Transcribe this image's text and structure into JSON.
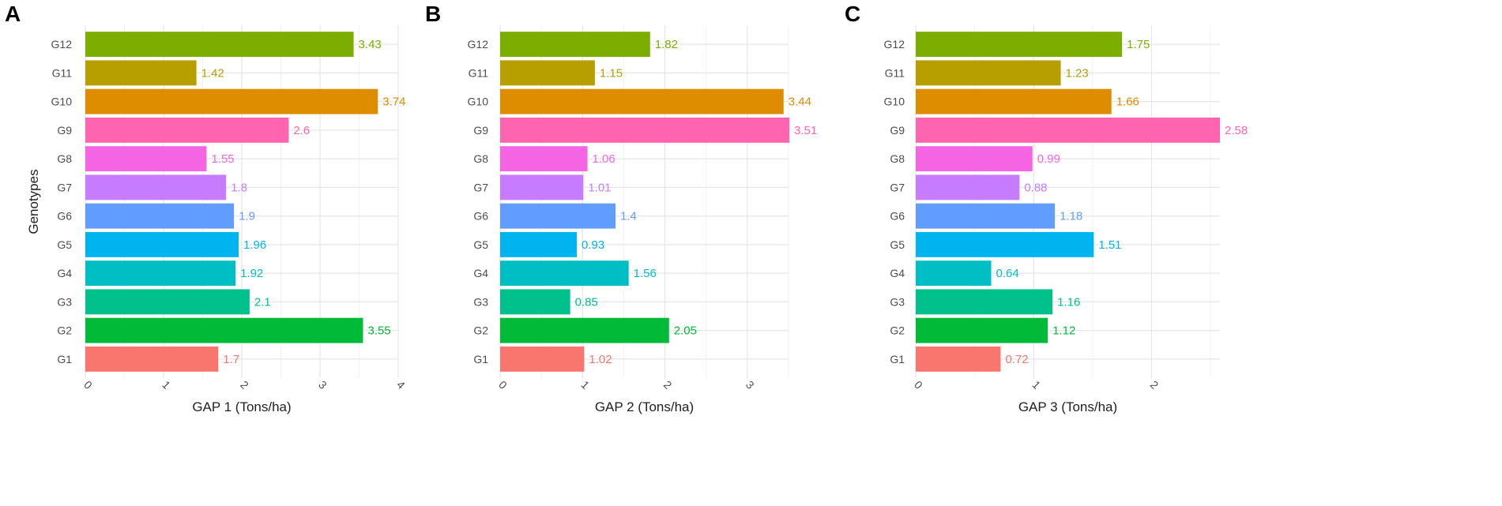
{
  "colors": {
    "G1": "#F8766D",
    "G2": "#00BA38",
    "G3": "#00C08B",
    "G4": "#00BFC4",
    "G5": "#00B4F0",
    "G6": "#619CFF",
    "G7": "#C77CFF",
    "G8": "#F564E3",
    "G9": "#FF64B0",
    "G10": "#DE8C00",
    "G11": "#B79F00",
    "G12": "#7CAE00"
  },
  "chart_data": [
    {
      "type": "bar",
      "orientation": "horizontal",
      "panel_label": "A",
      "categories": [
        "G1",
        "G2",
        "G3",
        "G4",
        "G5",
        "G6",
        "G7",
        "G8",
        "G9",
        "G10",
        "G11",
        "G12"
      ],
      "values": [
        1.7,
        3.55,
        2.1,
        1.92,
        1.96,
        1.9,
        1.8,
        1.55,
        2.6,
        3.74,
        1.42,
        3.43
      ],
      "value_labels": [
        "1.7",
        "3.55",
        "2.1",
        "1.92",
        "1.96",
        "1.9",
        "1.8",
        "1.55",
        "2.6",
        "3.74",
        "1.42",
        "3.43"
      ],
      "xlabel": "GAP 1 (Tons/ha)",
      "ylabel": "Genotypes",
      "xlim": [
        0,
        4
      ],
      "xticks": [
        0,
        1,
        2,
        3,
        4
      ],
      "xtick_labels": [
        "0",
        "1",
        "2",
        "3",
        "4"
      ],
      "grid": true
    },
    {
      "type": "bar",
      "orientation": "horizontal",
      "panel_label": "B",
      "categories": [
        "G1",
        "G2",
        "G3",
        "G4",
        "G5",
        "G6",
        "G7",
        "G8",
        "G9",
        "G10",
        "G11",
        "G12"
      ],
      "values": [
        1.02,
        2.05,
        0.85,
        1.56,
        0.93,
        1.4,
        1.01,
        1.06,
        3.51,
        3.44,
        1.15,
        1.82
      ],
      "value_labels": [
        "1.02",
        "2.05",
        "0.85",
        "1.56",
        "0.93",
        "1.4",
        "1.01",
        "1.06",
        "3.51",
        "3.44",
        "1.15",
        "1.82"
      ],
      "xlabel": "GAP 2 (Tons/ha)",
      "ylabel": "",
      "xlim": [
        0,
        3.5
      ],
      "xticks": [
        0,
        1,
        2,
        3
      ],
      "xtick_labels": [
        "0",
        "1",
        "2",
        "3"
      ],
      "grid": true
    },
    {
      "type": "bar",
      "orientation": "horizontal",
      "panel_label": "C",
      "categories": [
        "G1",
        "G2",
        "G3",
        "G4",
        "G5",
        "G6",
        "G7",
        "G8",
        "G9",
        "G10",
        "G11",
        "G12"
      ],
      "values": [
        0.72,
        1.12,
        1.16,
        0.64,
        1.51,
        1.18,
        0.88,
        0.99,
        2.58,
        1.66,
        1.23,
        1.75
      ],
      "value_labels": [
        "0.72",
        "1.12",
        "1.16",
        "0.64",
        "1.51",
        "1.18",
        "0.88",
        "0.99",
        "2.58",
        "1.66",
        "1.23",
        "1.75"
      ],
      "xlabel": "GAP 3 (Tons/ha)",
      "ylabel": "",
      "xlim": [
        0,
        2.58
      ],
      "xticks": [
        0,
        1,
        2
      ],
      "xtick_labels": [
        "0",
        "1",
        "2"
      ],
      "grid": true
    }
  ]
}
